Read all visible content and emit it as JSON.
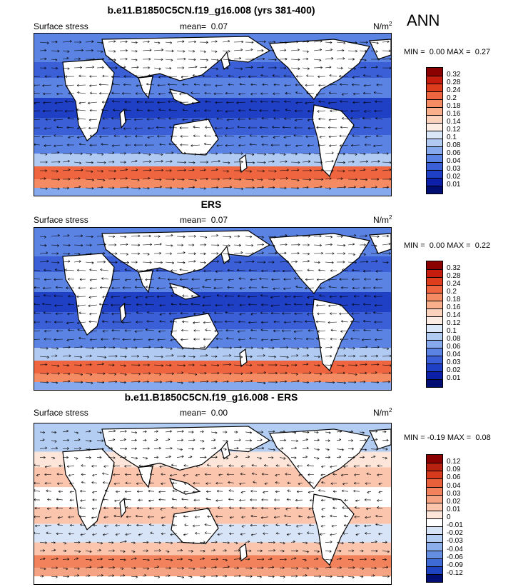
{
  "season": "ANN",
  "panels": [
    {
      "title": "b.e11.B1850C5CN.f19_g16.008 (yrs 381-400)",
      "variable": "Surface stress",
      "mean_label": "mean=",
      "mean_value": "0.07",
      "units": "N/m",
      "units_sup": "2",
      "min_label": "MIN =",
      "min_value": "0.00",
      "max_label": "MAX =",
      "max_value": "0.27",
      "colorbar": {
        "labels": [
          "0.32",
          "0.28",
          "0.24",
          "0.2",
          "0.18",
          "0.16",
          "0.14",
          "0.12",
          "0.1",
          "0.08",
          "0.06",
          "0.04",
          "0.03",
          "0.02",
          "0.01"
        ],
        "colors": [
          "#8b0000",
          "#c61c0d",
          "#dd3d1c",
          "#ee6540",
          "#f58b63",
          "#f9ae8c",
          "#fbd2bc",
          "#fdece2",
          "#d9e7f8",
          "#b0caf2",
          "#86a8ec",
          "#5b83e3",
          "#3a5fd6",
          "#1f3fc4",
          "#0c1fa9",
          "#000e73"
        ]
      }
    },
    {
      "title": "ERS",
      "variable": "Surface stress",
      "mean_label": "mean=",
      "mean_value": "0.07",
      "units": "N/m",
      "units_sup": "2",
      "min_label": "MIN =",
      "min_value": "0.00",
      "max_label": "MAX =",
      "max_value": "0.22",
      "colorbar": {
        "labels": [
          "0.32",
          "0.28",
          "0.24",
          "0.2",
          "0.18",
          "0.16",
          "0.14",
          "0.12",
          "0.1",
          "0.08",
          "0.06",
          "0.04",
          "0.03",
          "0.02",
          "0.01"
        ],
        "colors": [
          "#8b0000",
          "#c61c0d",
          "#dd3d1c",
          "#ee6540",
          "#f58b63",
          "#f9ae8c",
          "#fbd2bc",
          "#fdece2",
          "#d9e7f8",
          "#b0caf2",
          "#86a8ec",
          "#5b83e3",
          "#3a5fd6",
          "#1f3fc4",
          "#0c1fa9",
          "#000e73"
        ]
      }
    },
    {
      "title": "b.e11.B1850C5CN.f19_g16.008 - ERS",
      "variable": "Surface stress",
      "mean_label": "mean=",
      "mean_value": "0.00",
      "units": "N/m",
      "units_sup": "2",
      "min_label": "MIN =",
      "min_value": "-0.19",
      "max_label": "MAX =",
      "max_value": "0.08",
      "colorbar": {
        "labels": [
          "0.12",
          "0.09",
          "0.06",
          "0.04",
          "0.03",
          "0.02",
          "0.01",
          "0",
          "-0.01",
          "-0.02",
          "-0.03",
          "-0.04",
          "-0.06",
          "-0.09",
          "-0.12"
        ],
        "colors": [
          "#8b0000",
          "#b8200f",
          "#d63a1d",
          "#e8603a",
          "#f1825b",
          "#f6a383",
          "#fac4ad",
          "#fde5d9",
          "#ffffff",
          "#d7e4f7",
          "#b2ccf2",
          "#8cafeb",
          "#648ee2",
          "#3d6ad5",
          "#1d43c1",
          "#000e73"
        ]
      }
    }
  ]
}
